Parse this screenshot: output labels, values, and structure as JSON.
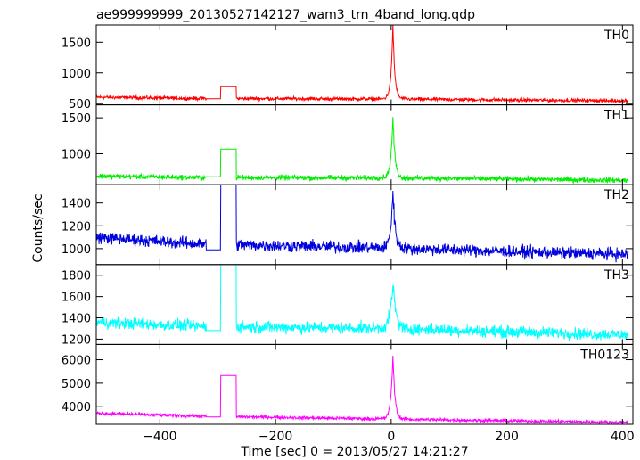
{
  "chart_data": {
    "type": "line",
    "title": "ae999999999_20130527142127_wam3_trn_4band_long.qdp",
    "xlabel": "Time [sec] 0 = 2013/05/27 14:21:27",
    "ylabel": "Counts/sec",
    "xlim": [
      -510,
      418
    ],
    "xticks": [
      -400,
      -200,
      0,
      200,
      400
    ],
    "xtick_labels": [
      "−400",
      "−200",
      "0",
      "200",
      "400"
    ],
    "grid": false,
    "panels": [
      {
        "name": "TH0",
        "color": "#ff0000",
        "ylim": [
          480,
          1780
        ],
        "yticks": [
          500,
          1000,
          1500
        ],
        "baseline": [
          [
            -510,
            605
          ],
          [
            -330,
            585
          ],
          [
            0,
            575
          ],
          [
            200,
            560
          ],
          [
            410,
            545
          ]
        ],
        "noise": 22,
        "gap": {
          "from": -295,
          "to": -268,
          "value": 775
        },
        "gap_left_value": 580,
        "peak": {
          "t": 3,
          "value": 1780,
          "width": 3.2
        }
      },
      {
        "name": "TH1",
        "color": "#00ee00",
        "ylim": [
          570,
          1680
        ],
        "yticks": [
          1000,
          1500
        ],
        "baseline": [
          [
            -510,
            690
          ],
          [
            -330,
            670
          ],
          [
            0,
            665
          ],
          [
            200,
            650
          ],
          [
            410,
            630
          ]
        ],
        "noise": 28,
        "gap": {
          "from": -295,
          "to": -268,
          "value": 1065
        },
        "gap_left_value": 680,
        "peak": {
          "t": 3,
          "value": 1500,
          "width": 3.5
        }
      },
      {
        "name": "TH2",
        "color": "#0000dd",
        "ylim": [
          860,
          1560
        ],
        "yticks": [
          1000,
          1200,
          1400
        ],
        "baseline": [
          [
            -510,
            1100
          ],
          [
            -330,
            1040
          ],
          [
            0,
            1005
          ],
          [
            200,
            975
          ],
          [
            410,
            950
          ]
        ],
        "noise": 40,
        "gap": {
          "from": -295,
          "to": -268,
          "value": 1560
        },
        "gap_left_value": 990,
        "peak": {
          "t": 3,
          "value": 1500,
          "width": 3.8
        }
      },
      {
        "name": "TH3",
        "color": "#00ffff",
        "ylim": [
          1150,
          1900
        ],
        "yticks": [
          1200,
          1400,
          1600,
          1800
        ],
        "baseline": [
          [
            -510,
            1360
          ],
          [
            -330,
            1320
          ],
          [
            0,
            1300
          ],
          [
            200,
            1270
          ],
          [
            410,
            1240
          ]
        ],
        "noise": 42,
        "gap": {
          "from": -295,
          "to": -268,
          "value": 1900
        },
        "gap_left_value": 1280,
        "peak": {
          "t": 3,
          "value": 1710,
          "width": 5.0
        }
      },
      {
        "name": "TH0123",
        "color": "#ff00ff",
        "ylim": [
          3250,
          6650
        ],
        "yticks": [
          4000,
          5000,
          6000
        ],
        "baseline": [
          [
            -510,
            3720
          ],
          [
            -330,
            3600
          ],
          [
            0,
            3470
          ],
          [
            200,
            3400
          ],
          [
            410,
            3330
          ]
        ],
        "noise": 55,
        "gap": {
          "from": -295,
          "to": -268,
          "value": 5330
        },
        "gap_left_value": 3560,
        "peak": {
          "t": 3,
          "value": 6200,
          "width": 3.5
        }
      }
    ]
  }
}
